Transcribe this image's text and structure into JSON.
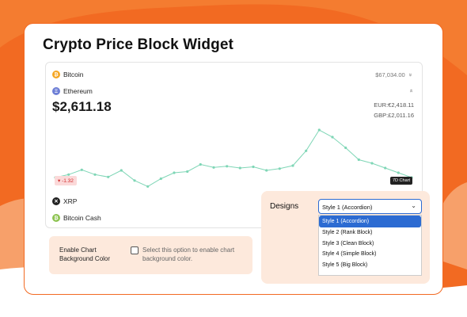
{
  "page": {
    "title": "Crypto Price Block Widget"
  },
  "colors": {
    "accent": "#f26a22",
    "panel_bg": "#fde9dc",
    "select_blue": "#2c6bd2",
    "chart_line": "#7fd6b6",
    "negative": "#d12c2c"
  },
  "widget": {
    "coins": [
      {
        "name": "Bitcoin",
        "icon": "bitcoin-icon",
        "color": "#f5a623",
        "glyph": "₿",
        "price": "$67,034.00",
        "chevron": "»"
      },
      {
        "name": "Ethereum",
        "icon": "ethereum-icon",
        "color": "#6e7fd6",
        "glyph": "Ξ",
        "chevron": "»"
      },
      {
        "name": "XRP",
        "icon": "xrp-icon",
        "color": "#222222",
        "glyph": "✕"
      },
      {
        "name": "Bitcoin Cash",
        "icon": "bitcoin-cash-icon",
        "color": "#8dc351",
        "glyph": "₿"
      }
    ],
    "selected": {
      "price": "$2,611.18",
      "eur": "EUR:€2,418.11",
      "gbp": "GBP:£2,011.16",
      "change": "▾ -1.32",
      "range": "7D Chart"
    }
  },
  "chart_data": {
    "type": "line",
    "title": "",
    "xlabel": "",
    "ylabel": "",
    "x": [
      0,
      1,
      2,
      3,
      4,
      5,
      6,
      7,
      8,
      9,
      10,
      11,
      12,
      13,
      14,
      15,
      16,
      17,
      18,
      19,
      20,
      21,
      22,
      23,
      24,
      25,
      26,
      27
    ],
    "values": [
      2600,
      2605,
      2613,
      2605,
      2601,
      2612,
      2595,
      2585,
      2598,
      2608,
      2610,
      2622,
      2617,
      2619,
      2616,
      2618,
      2612,
      2615,
      2620,
      2645,
      2680,
      2668,
      2650,
      2630,
      2624,
      2616,
      2608,
      2600
    ],
    "series": [
      {
        "values": [
          2600,
          2605,
          2613,
          2605,
          2601,
          2612,
          2595,
          2585,
          2598,
          2608,
          2610,
          2622,
          2617,
          2619,
          2616,
          2618,
          2612,
          2615,
          2620,
          2645,
          2680,
          2668,
          2650,
          2630,
          2624,
          2616,
          2608,
          2600
        ]
      }
    ],
    "ylim": [
      2560,
      2700
    ],
    "grid": false
  },
  "chart_settings": {
    "label": "Enable Chart Background Color",
    "description": "Select this option to enable chart background color."
  },
  "designs": {
    "label": "Designs",
    "selected_value": "Style 1 (Accordion)",
    "chevron_icon": "chevron-down-icon",
    "options": [
      "Style 1 (Accordion)",
      "Style 2 (Rank Block)",
      "Style 3 (Clean Block)",
      "Style 4 (Simple Block)",
      "Style 5 (Big Block)"
    ]
  }
}
